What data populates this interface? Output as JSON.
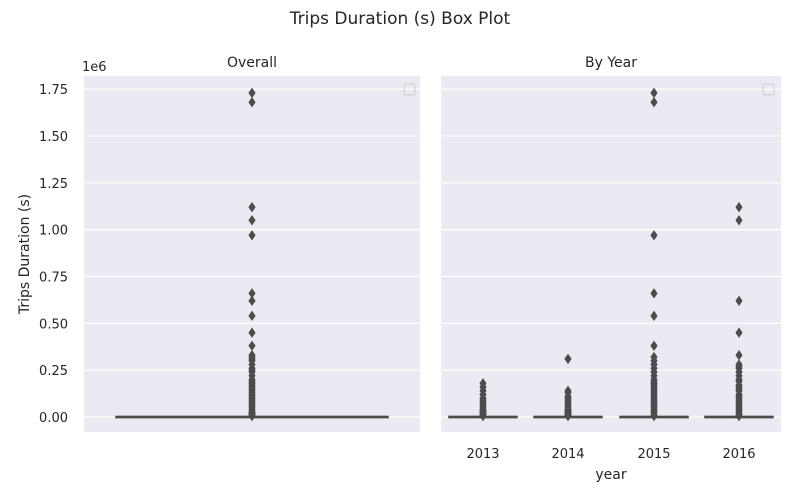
{
  "figure": {
    "suptitle": "Trips Duration (s) Box Plot"
  },
  "colors": {
    "panel_bg": "#eaeaf2",
    "grid": "#ffffff",
    "box": "#4c4c4c",
    "text": "#262626"
  },
  "chart_data": [
    {
      "type": "box",
      "title": "Overall",
      "xlabel": "",
      "ylabel": "Trips Duration (s)",
      "y_scale_label": "1e6",
      "ylim": [
        -0.08,
        1.82
      ],
      "yticks": [
        0,
        0.25,
        0.5,
        0.75,
        1.0,
        1.25,
        1.5,
        1.75
      ],
      "ytick_labels": [
        "0.00",
        "0.25",
        "0.50",
        "0.75",
        "1.00",
        "1.25",
        "1.50",
        "1.75"
      ],
      "grid": true,
      "legend": "top-right (empty)",
      "categories": [
        ""
      ],
      "boxes": [
        {
          "category": "",
          "median": 0.0,
          "q1": 0.0,
          "q3": 0.0,
          "whisker_low": 0.0,
          "whisker_high": 0.0,
          "outliers": [
            1.73,
            1.68,
            1.12,
            1.05,
            0.97,
            0.66,
            0.62,
            0.54,
            0.45,
            0.38,
            0.33,
            0.32,
            0.31,
            0.3,
            0.28,
            0.26,
            0.25,
            0.24,
            0.22,
            0.2,
            0.19,
            0.18,
            0.17,
            0.16,
            0.15,
            0.14,
            0.13,
            0.12,
            0.11,
            0.1,
            0.09,
            0.08,
            0.07,
            0.06,
            0.05,
            0.04,
            0.03,
            0.025,
            0.02,
            0.015,
            0.01,
            0.005
          ]
        }
      ]
    },
    {
      "type": "box",
      "title": "By Year",
      "xlabel": "year",
      "ylabel": "",
      "ylim": [
        -0.08,
        1.82
      ],
      "yticks": [
        0,
        0.25,
        0.5,
        0.75,
        1.0,
        1.25,
        1.5,
        1.75
      ],
      "grid": true,
      "legend": "top-right (empty)",
      "categories": [
        "2013",
        "2014",
        "2015",
        "2016"
      ],
      "boxes": [
        {
          "category": "2013",
          "median": 0.0,
          "q1": 0.0,
          "q3": 0.0,
          "whisker_low": 0.0,
          "whisker_high": 0.0,
          "outliers": [
            0.18,
            0.16,
            0.14,
            0.12,
            0.1,
            0.09,
            0.08,
            0.07,
            0.06,
            0.05,
            0.04,
            0.035,
            0.03,
            0.025,
            0.02,
            0.015,
            0.01,
            0.005
          ]
        },
        {
          "category": "2014",
          "median": 0.0,
          "q1": 0.0,
          "q3": 0.0,
          "whisker_low": 0.0,
          "whisker_high": 0.0,
          "outliers": [
            0.31,
            0.14,
            0.13,
            0.11,
            0.1,
            0.09,
            0.08,
            0.07,
            0.06,
            0.05,
            0.04,
            0.035,
            0.03,
            0.025,
            0.02,
            0.015,
            0.01,
            0.005
          ]
        },
        {
          "category": "2015",
          "median": 0.0,
          "q1": 0.0,
          "q3": 0.0,
          "whisker_low": 0.0,
          "whisker_high": 0.0,
          "outliers": [
            1.73,
            1.68,
            0.97,
            0.66,
            0.54,
            0.38,
            0.32,
            0.3,
            0.28,
            0.26,
            0.24,
            0.22,
            0.2,
            0.19,
            0.18,
            0.17,
            0.16,
            0.15,
            0.14,
            0.13,
            0.12,
            0.11,
            0.1,
            0.09,
            0.08,
            0.07,
            0.06,
            0.05,
            0.04,
            0.03,
            0.02,
            0.01,
            0.005
          ]
        },
        {
          "category": "2016",
          "median": 0.0,
          "q1": 0.0,
          "q3": 0.0,
          "whisker_low": 0.0,
          "whisker_high": 0.0,
          "outliers": [
            1.12,
            1.05,
            0.62,
            0.45,
            0.33,
            0.28,
            0.27,
            0.26,
            0.24,
            0.22,
            0.2,
            0.19,
            0.17,
            0.16,
            0.15,
            0.14,
            0.12,
            0.11,
            0.1,
            0.09,
            0.08,
            0.07,
            0.06,
            0.05,
            0.04,
            0.03,
            0.02,
            0.01,
            0.005
          ]
        }
      ]
    }
  ]
}
